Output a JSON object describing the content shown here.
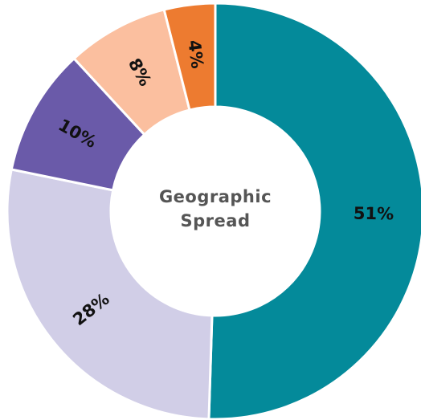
{
  "chart_data": {
    "type": "donut",
    "title": "Geographic Spread",
    "values": [
      51,
      28,
      10,
      8,
      4
    ],
    "value_labels": [
      "51%",
      "28%",
      "10%",
      "8%",
      "4%"
    ],
    "colors": [
      "#048a9a",
      "#d1cee7",
      "#6a5aa9",
      "#fbbf9f",
      "#ed7b30"
    ]
  }
}
